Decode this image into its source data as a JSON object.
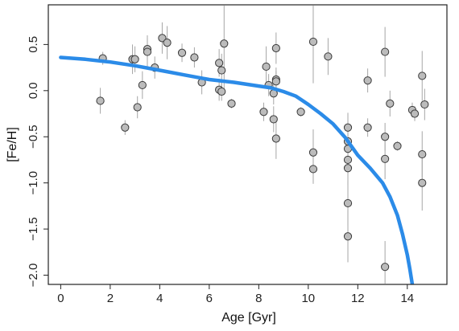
{
  "chart_data": {
    "type": "scatter",
    "xlabel": "Age [Gyr]",
    "ylabel": "[Fe/H]",
    "xlim": [
      -0.5,
      15.6
    ],
    "ylim": [
      -2.1,
      0.93
    ],
    "x_ticks": [
      0,
      2,
      4,
      6,
      8,
      10,
      12,
      14
    ],
    "y_ticks": [
      0.5,
      0.0,
      -0.5,
      -1.0,
      -1.5,
      -2.0
    ],
    "x_tick_labels": [
      "0",
      "2",
      "4",
      "6",
      "8",
      "10",
      "12",
      "14"
    ],
    "y_tick_labels": [
      "0.5",
      "0.0",
      "−0.5",
      "−1.0",
      "−1.5",
      "−2.0"
    ],
    "grid": false,
    "points": [
      {
        "x": 1.6,
        "y": -0.11,
        "yerr": 0.14
      },
      {
        "x": 1.7,
        "y": 0.35,
        "yerr": 0.07
      },
      {
        "x": 2.6,
        "y": -0.4,
        "yerr": 0.08
      },
      {
        "x": 2.9,
        "y": 0.34,
        "yerr": 0.16
      },
      {
        "x": 3.0,
        "y": 0.34,
        "yerr": 0.14
      },
      {
        "x": 3.1,
        "y": -0.18,
        "yerr": 0.12
      },
      {
        "x": 3.3,
        "y": 0.06,
        "yerr": 0.15
      },
      {
        "x": 3.5,
        "y": 0.45,
        "yerr": 0.12
      },
      {
        "x": 3.5,
        "y": 0.42,
        "yerr": 0.18
      },
      {
        "x": 3.8,
        "y": 0.25,
        "yerr": 0.12
      },
      {
        "x": 4.1,
        "y": 0.57,
        "yerr": 0.17
      },
      {
        "x": 4.3,
        "y": 0.52,
        "yerr": 0.18
      },
      {
        "x": 4.9,
        "y": 0.41,
        "yerr": 0.1
      },
      {
        "x": 5.4,
        "y": 0.36,
        "yerr": 0.11
      },
      {
        "x": 5.7,
        "y": 0.09,
        "yerr": 0.13
      },
      {
        "x": 6.4,
        "y": 0.3,
        "yerr": 0.15
      },
      {
        "x": 6.4,
        "y": 0.01,
        "yerr": 0.12
      },
      {
        "x": 6.5,
        "y": 0.22,
        "yerr": 0.18
      },
      {
        "x": 6.5,
        "y": -0.01,
        "yerr": 0.1
      },
      {
        "x": 6.6,
        "y": 0.51,
        "yerr": 0.5
      },
      {
        "x": 6.9,
        "y": -0.14,
        "yerr": 0.05
      },
      {
        "x": 8.2,
        "y": -0.23,
        "yerr": 0.1
      },
      {
        "x": 8.3,
        "y": 0.26,
        "yerr": 0.22
      },
      {
        "x": 8.4,
        "y": 0.06,
        "yerr": 0.12
      },
      {
        "x": 8.6,
        "y": -0.03,
        "yerr": 0.12
      },
      {
        "x": 8.6,
        "y": -0.31,
        "yerr": 0.14
      },
      {
        "x": 8.7,
        "y": 0.46,
        "yerr": 0.17
      },
      {
        "x": 8.7,
        "y": 0.12,
        "yerr": 0.09
      },
      {
        "x": 8.7,
        "y": 0.1,
        "yerr": 0.15
      },
      {
        "x": 8.7,
        "y": -0.52,
        "yerr": 0.22
      },
      {
        "x": 9.7,
        "y": -0.23,
        "yerr": 0.05
      },
      {
        "x": 10.2,
        "y": 0.53,
        "yerr": 0.45
      },
      {
        "x": 10.2,
        "y": -0.67,
        "yerr": 0.25
      },
      {
        "x": 10.2,
        "y": -0.85,
        "yerr": 0.16
      },
      {
        "x": 10.8,
        "y": 0.37,
        "yerr": 0.2
      },
      {
        "x": 11.6,
        "y": -0.4,
        "yerr": 0.16
      },
      {
        "x": 11.6,
        "y": -0.55,
        "yerr": 0.18
      },
      {
        "x": 11.6,
        "y": -0.63,
        "yerr": 0.16
      },
      {
        "x": 11.6,
        "y": -0.75,
        "yerr": 0.15
      },
      {
        "x": 11.6,
        "y": -0.84,
        "yerr": 0.18
      },
      {
        "x": 11.6,
        "y": -1.22,
        "yerr": 0.24
      },
      {
        "x": 11.6,
        "y": -1.58,
        "yerr": 0.28
      },
      {
        "x": 12.4,
        "y": 0.11,
        "yerr": 0.13
      },
      {
        "x": 12.4,
        "y": -0.4,
        "yerr": 0.1
      },
      {
        "x": 13.1,
        "y": 0.42,
        "yerr": 0.27
      },
      {
        "x": 13.1,
        "y": -0.5,
        "yerr": 0.15
      },
      {
        "x": 13.1,
        "y": -0.74,
        "yerr": 0.22
      },
      {
        "x": 13.1,
        "y": -1.91,
        "yerr": 0.28
      },
      {
        "x": 13.3,
        "y": -0.14,
        "yerr": 0.14
      },
      {
        "x": 13.6,
        "y": -0.6,
        "yerr": 0.05
      },
      {
        "x": 14.2,
        "y": -0.21,
        "yerr": 0.08
      },
      {
        "x": 14.3,
        "y": -0.25,
        "yerr": 0.08
      },
      {
        "x": 14.6,
        "y": 0.16,
        "yerr": 0.27
      },
      {
        "x": 14.6,
        "y": -0.69,
        "yerr": 0.25
      },
      {
        "x": 14.6,
        "y": -1.0,
        "yerr": 0.3
      },
      {
        "x": 14.7,
        "y": -0.15,
        "yerr": 0.17
      }
    ],
    "model_curve": {
      "color": "#2b8be8",
      "x": [
        0,
        1,
        2,
        3,
        4,
        5,
        6,
        7,
        8,
        8.5,
        9,
        9.5,
        10,
        10.5,
        11,
        11.5,
        12,
        12.5,
        13,
        13.3,
        13.6,
        13.8,
        14.0,
        14.1,
        14.2
      ],
      "y": [
        0.36,
        0.34,
        0.31,
        0.27,
        0.22,
        0.17,
        0.12,
        0.09,
        0.05,
        0.03,
        -0.01,
        -0.06,
        -0.15,
        -0.25,
        -0.36,
        -0.51,
        -0.7,
        -0.84,
        -1.0,
        -1.15,
        -1.35,
        -1.55,
        -1.78,
        -1.93,
        -2.1
      ]
    },
    "marker_fill": "#bcbcbc",
    "marker_stroke": "#3a3a3a",
    "errorbar_color": "#a6a6a6"
  }
}
